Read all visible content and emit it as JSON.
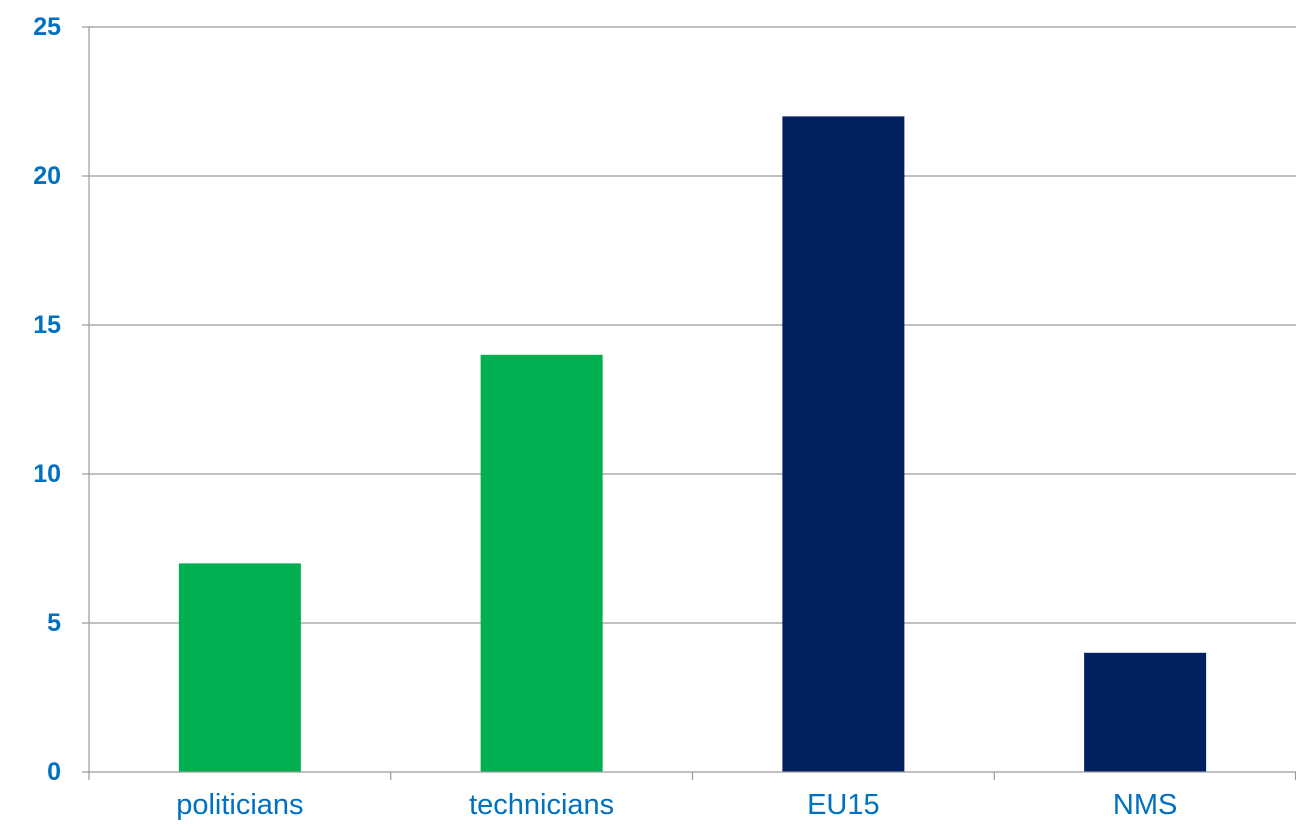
{
  "chart_data": {
    "type": "bar",
    "title": "",
    "xlabel": "",
    "ylabel": "",
    "categories": [
      "politicians",
      "technicians",
      "EU15",
      "NMS"
    ],
    "values": [
      7,
      14,
      22,
      4
    ],
    "bar_colors": [
      "#00B050",
      "#00B050",
      "#002060",
      "#002060"
    ],
    "ylim": [
      0,
      25
    ],
    "yticks": [
      "0",
      "5",
      "10",
      "15",
      "20",
      "25"
    ],
    "grid": true,
    "legend": "none",
    "colors": {
      "tick_label": "#0070C0",
      "axis": "#9A9A9A",
      "grid": "#9A9A9A"
    }
  }
}
